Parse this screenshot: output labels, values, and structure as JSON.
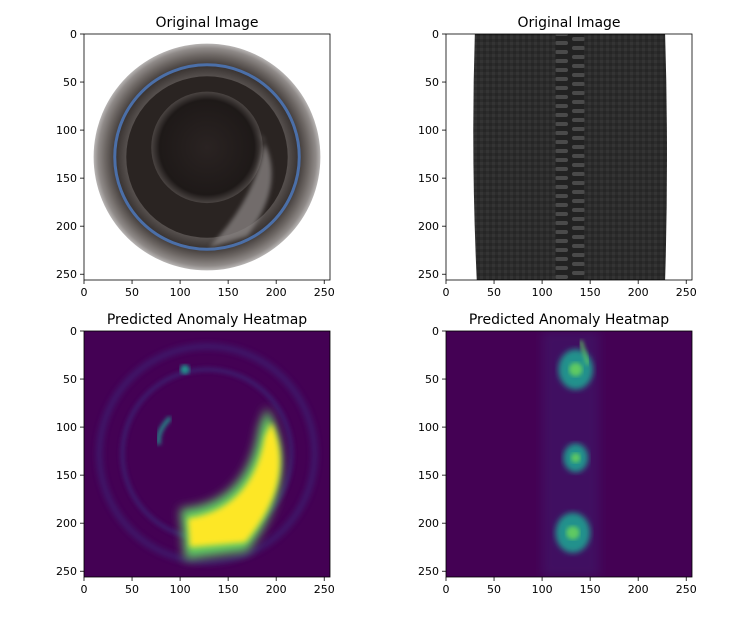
{
  "chart_data": [
    {
      "type": "heatmap",
      "title": "Original Image",
      "xlim": [
        0,
        256
      ],
      "ylim": [
        256,
        0
      ],
      "xticks": [
        0,
        50,
        100,
        150,
        200,
        250
      ],
      "yticks": [
        0,
        50,
        100,
        150,
        200,
        250
      ],
      "content": "photo",
      "image_subject": "bottle-top-view"
    },
    {
      "type": "heatmap",
      "title": "Original Image",
      "xlim": [
        0,
        256
      ],
      "ylim": [
        256,
        0
      ],
      "xticks": [
        0,
        50,
        100,
        150,
        200,
        250
      ],
      "yticks": [
        0,
        50,
        100,
        150,
        200,
        250
      ],
      "content": "photo",
      "image_subject": "zipper"
    },
    {
      "type": "heatmap",
      "title": "Predicted Anomaly Heatmap",
      "xlim": [
        0,
        256
      ],
      "ylim": [
        256,
        0
      ],
      "xticks": [
        0,
        50,
        100,
        150,
        200,
        250
      ],
      "yticks": [
        0,
        50,
        100,
        150,
        200,
        250
      ],
      "colormap": "viridis",
      "content": "heatmap",
      "image_subject": "bottle-anomaly"
    },
    {
      "type": "heatmap",
      "title": "Predicted Anomaly Heatmap",
      "xlim": [
        0,
        256
      ],
      "ylim": [
        256,
        0
      ],
      "xticks": [
        0,
        50,
        100,
        150,
        200,
        250
      ],
      "yticks": [
        0,
        50,
        100,
        150,
        200,
        250
      ],
      "colormap": "viridis",
      "content": "heatmap",
      "image_subject": "zipper-anomaly"
    }
  ],
  "colors": {
    "viridis_dark": "#440154",
    "viridis_low": "#3b2a7a",
    "viridis_mid": "#21918c",
    "viridis_high": "#5ec962",
    "viridis_max": "#fde725"
  }
}
